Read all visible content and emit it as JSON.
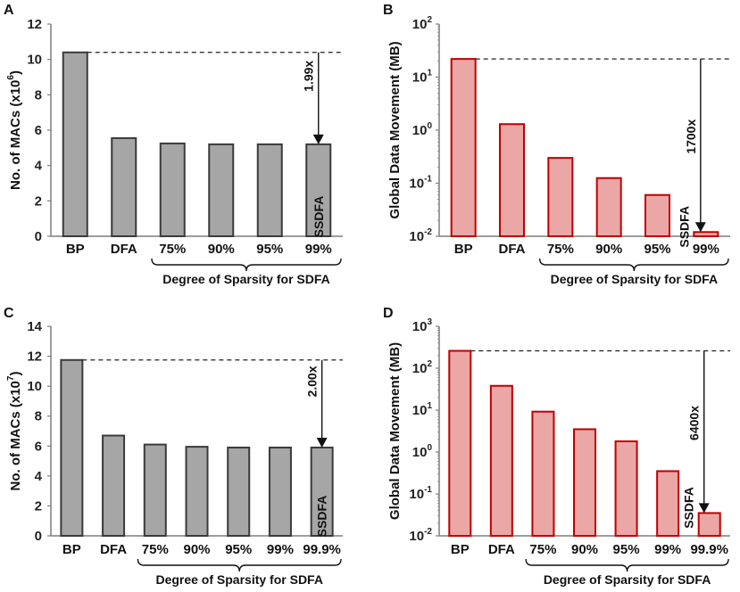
{
  "chart_data": [
    {
      "panel": "A",
      "type": "bar",
      "scale": "linear",
      "categories": [
        "BP",
        "DFA",
        "75%",
        "90%",
        "95%",
        "99%"
      ],
      "values": [
        10.4,
        5.55,
        5.25,
        5.2,
        5.2,
        5.2
      ],
      "ylabel": "No. of MACs (x10",
      "ylabel_exp": "6",
      "ylabel_close": ")",
      "ylim": [
        0,
        12
      ],
      "yticks": [
        "0",
        "2",
        "4",
        "6",
        "8",
        "10",
        "12"
      ],
      "group_label": "Degree of Sparsity for SDFA",
      "group_start_index": 2,
      "annotation": "1.99x",
      "highlight_label": "SSDFA",
      "style": "gray"
    },
    {
      "panel": "B",
      "type": "bar",
      "scale": "log",
      "categories": [
        "BP",
        "DFA",
        "75%",
        "90%",
        "95%",
        "99%"
      ],
      "values": [
        22,
        1.3,
        0.3,
        0.125,
        0.06,
        0.012
      ],
      "ylabel": "Global Data Movement (MB)",
      "ylim_exp": [
        -2,
        2
      ],
      "ytick_base": "10",
      "ytick_exps": [
        "-2",
        "-1",
        "0",
        "1",
        "2"
      ],
      "group_label": "Degree of Sparsity for SDFA",
      "group_start_index": 2,
      "annotation": "1700x",
      "highlight_label": "SSDFA",
      "style": "red"
    },
    {
      "panel": "C",
      "type": "bar",
      "scale": "linear",
      "categories": [
        "BP",
        "DFA",
        "75%",
        "90%",
        "95%",
        "99%",
        "99.9%"
      ],
      "values": [
        11.75,
        6.7,
        6.1,
        5.95,
        5.9,
        5.9,
        5.9
      ],
      "ylabel": "No. of MACs (x10",
      "ylabel_exp": "7",
      "ylabel_close": ")",
      "ylim": [
        0,
        14
      ],
      "yticks": [
        "0",
        "2",
        "4",
        "6",
        "8",
        "10",
        "12",
        "14"
      ],
      "group_label": "Degree of Sparsity for SDFA",
      "group_start_index": 2,
      "annotation": "2.00x",
      "highlight_label": "SSDFA",
      "style": "gray"
    },
    {
      "panel": "D",
      "type": "bar",
      "scale": "log",
      "categories": [
        "BP",
        "DFA",
        "75%",
        "90%",
        "95%",
        "99%",
        "99.9%"
      ],
      "values": [
        260,
        38,
        9.2,
        3.5,
        1.8,
        0.35,
        0.035
      ],
      "ylabel": "Global Data Movement (MB)",
      "ylim_exp": [
        -2,
        3
      ],
      "ytick_base": "10",
      "ytick_exps": [
        "-2",
        "-1",
        "0",
        "1",
        "2",
        "3"
      ],
      "group_label": "Degree of Sparsity for SDFA",
      "group_start_index": 2,
      "annotation": "6400x",
      "highlight_label": "SSDFA",
      "style": "red"
    }
  ],
  "colors": {
    "gray_fill": "#a6a6a6",
    "gray_stroke": "#3a3a3a",
    "red_fill": "#eba6a6",
    "red_stroke": "#c00000",
    "axis": "#7f7f7f",
    "text": "#111111"
  }
}
